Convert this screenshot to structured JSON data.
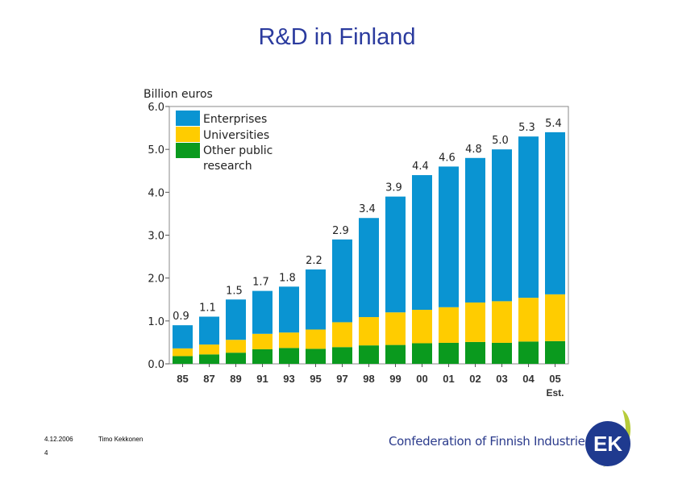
{
  "title": "R&D in Finland",
  "footer": {
    "date": "4.12.2006",
    "author": "Timo Kekkonen",
    "page": "4"
  },
  "organization": "Confederation of Finnish Industries",
  "logo_text": "EK",
  "colors": {
    "enterprises": "#0a94d2",
    "universities": "#ffcc00",
    "other_public": "#0a9a1e",
    "title": "#2b3b9e"
  },
  "chart_data": {
    "type": "bar",
    "stacked": true,
    "ylabel": "Billion euros",
    "ylim": [
      0,
      6
    ],
    "yticks": [
      "0.0",
      "1.0",
      "2.0",
      "3.0",
      "4.0",
      "5.0",
      "6.0"
    ],
    "categories": [
      "85",
      "87",
      "89",
      "91",
      "93",
      "95",
      "97",
      "98",
      "99",
      "00",
      "01",
      "02",
      "03",
      "04",
      "05"
    ],
    "x_note": "Est.",
    "totals": [
      "0.9",
      "1.1",
      "1.5",
      "1.7",
      "1.8",
      "2.2",
      "2.9",
      "3.4",
      "3.9",
      "4.4",
      "4.6",
      "4.8",
      "5.0",
      "5.3",
      "5.4"
    ],
    "series": [
      {
        "name": "Other public research",
        "values": [
          0.18,
          0.22,
          0.26,
          0.34,
          0.37,
          0.35,
          0.39,
          0.43,
          0.44,
          0.48,
          0.49,
          0.51,
          0.49,
          0.52,
          0.53
        ]
      },
      {
        "name": "Universities",
        "values": [
          0.18,
          0.23,
          0.3,
          0.36,
          0.36,
          0.45,
          0.58,
          0.66,
          0.76,
          0.78,
          0.83,
          0.92,
          0.97,
          1.02,
          1.09
        ]
      },
      {
        "name": "Enterprises",
        "values": [
          0.54,
          0.65,
          0.94,
          1.0,
          1.07,
          1.4,
          1.93,
          2.31,
          2.7,
          3.14,
          3.28,
          3.37,
          3.54,
          3.76,
          3.78
        ]
      }
    ],
    "legend": [
      "Enterprises",
      "Universities",
      "Other public research"
    ],
    "legend_position": "top-left",
    "grid": false
  }
}
